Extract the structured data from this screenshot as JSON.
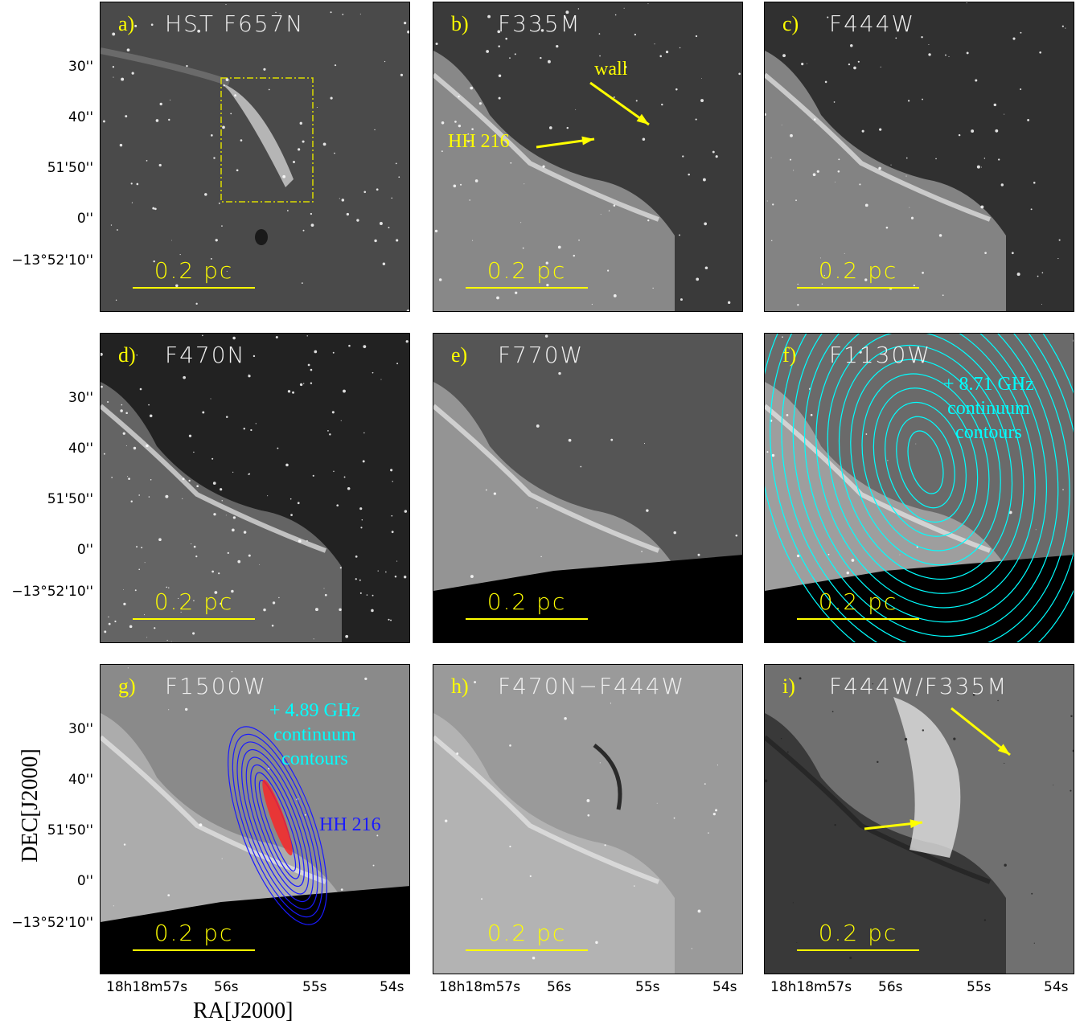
{
  "panels": [
    {
      "label": "a)",
      "title": "HST F657N",
      "scale": "0.2 pc",
      "bg": "#4a4a4a"
    },
    {
      "label": "b)",
      "title": "F335M",
      "scale": "0.2 pc",
      "bg": "#3a3a3a"
    },
    {
      "label": "c)",
      "title": "F444W",
      "scale": "0.2 pc",
      "bg": "#303030"
    },
    {
      "label": "d)",
      "title": "F470N",
      "scale": "0.2 pc",
      "bg": "#222222"
    },
    {
      "label": "e)",
      "title": "F770W",
      "scale": "0.2 pc",
      "bg": "#555555"
    },
    {
      "label": "f)",
      "title": "F1130W",
      "scale": "0.2 pc",
      "bg": "#6a6a6a"
    },
    {
      "label": "g)",
      "title": "F1500W",
      "scale": "0.2 pc",
      "bg": "#8a8a8a"
    },
    {
      "label": "h)",
      "title": "F470N−F444W",
      "scale": "0.2 pc",
      "bg": "#9a9a9a"
    },
    {
      "label": "i)",
      "title": "F444W/F335M",
      "scale": "0.2 pc",
      "bg": "#707070"
    }
  ],
  "annotations": {
    "b_wall": "wall",
    "b_hh216": "HH 216",
    "f_contours": [
      "+ 8.71 GHz",
      "continuum",
      "contours"
    ],
    "g_contours": [
      "+ 4.89 GHz",
      "continuum",
      "contours"
    ],
    "g_hh216": "HH 216"
  },
  "yticks": [
    "30''",
    "40''",
    "51'50''",
    "0''",
    "−13°52'10''"
  ],
  "xticks": {
    "first": "18h18m57s",
    "others": [
      "56s",
      "55s",
      "54s"
    ]
  },
  "axes": {
    "ylabel": "DEC[J2000]",
    "xlabel": "RA[J2000]"
  },
  "colors": {
    "label": "#ffff00",
    "cyan_contours": "#00ffff",
    "blue_contours": "#1a1aff",
    "red_core": "#ff2020"
  }
}
